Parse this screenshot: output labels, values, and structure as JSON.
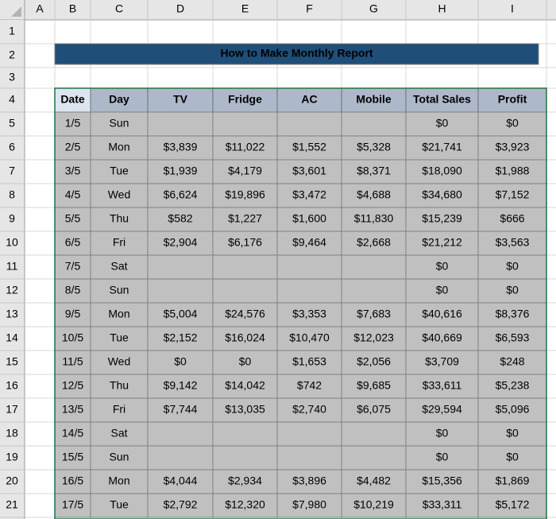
{
  "title": "How to Make Monthly Report",
  "column_letters": [
    "A",
    "B",
    "C",
    "D",
    "E",
    "F",
    "G",
    "H",
    "I"
  ],
  "row_numbers": [
    "1",
    "2",
    "3",
    "4",
    "5",
    "6",
    "7",
    "8",
    "9",
    "10",
    "11",
    "12",
    "13",
    "14",
    "15",
    "16",
    "17",
    "18",
    "19",
    "20",
    "21"
  ],
  "table": {
    "headers": [
      "Date",
      "Day",
      "TV",
      "Fridge",
      "AC",
      "Mobile",
      "Total Sales",
      "Profit"
    ],
    "rows": [
      [
        "1/5",
        "Sun",
        null,
        null,
        null,
        null,
        "$0",
        "$0"
      ],
      [
        "2/5",
        "Mon",
        "$3,839",
        "$11,022",
        "$1,552",
        "$5,328",
        "$21,741",
        "$3,923"
      ],
      [
        "3/5",
        "Tue",
        "$1,939",
        "$4,179",
        "$3,601",
        "$8,371",
        "$18,090",
        "$1,988"
      ],
      [
        "4/5",
        "Wed",
        "$6,624",
        "$19,896",
        "$3,472",
        "$4,688",
        "$34,680",
        "$7,152"
      ],
      [
        "5/5",
        "Thu",
        "$582",
        "$1,227",
        "$1,600",
        "$11,830",
        "$15,239",
        "$666"
      ],
      [
        "6/5",
        "Fri",
        "$2,904",
        "$6,176",
        "$9,464",
        "$2,668",
        "$21,212",
        "$3,563"
      ],
      [
        "7/5",
        "Sat",
        null,
        null,
        null,
        null,
        "$0",
        "$0"
      ],
      [
        "8/5",
        "Sun",
        null,
        null,
        null,
        null,
        "$0",
        "$0"
      ],
      [
        "9/5",
        "Mon",
        "$5,004",
        "$24,576",
        "$3,353",
        "$7,683",
        "$40,616",
        "$8,376"
      ],
      [
        "10/5",
        "Tue",
        "$2,152",
        "$16,024",
        "$10,470",
        "$12,023",
        "$40,669",
        "$6,593"
      ],
      [
        "11/5",
        "Wed",
        "$0",
        "$0",
        "$1,653",
        "$2,056",
        "$3,709",
        "$248"
      ],
      [
        "12/5",
        "Thu",
        "$9,142",
        "$14,042",
        "$742",
        "$9,685",
        "$33,611",
        "$5,238"
      ],
      [
        "13/5",
        "Fri",
        "$7,744",
        "$13,035",
        "$2,740",
        "$6,075",
        "$29,594",
        "$5,096"
      ],
      [
        "14/5",
        "Sat",
        null,
        null,
        null,
        null,
        "$0",
        "$0"
      ],
      [
        "15/5",
        "Sun",
        null,
        null,
        null,
        null,
        "$0",
        "$0"
      ],
      [
        "16/5",
        "Mon",
        "$4,044",
        "$2,934",
        "$3,896",
        "$4,482",
        "$15,356",
        "$1,869"
      ],
      [
        "17/5",
        "Tue",
        "$2,792",
        "$12,320",
        "$7,980",
        "$10,219",
        "$33,311",
        "$5,172"
      ]
    ]
  }
}
